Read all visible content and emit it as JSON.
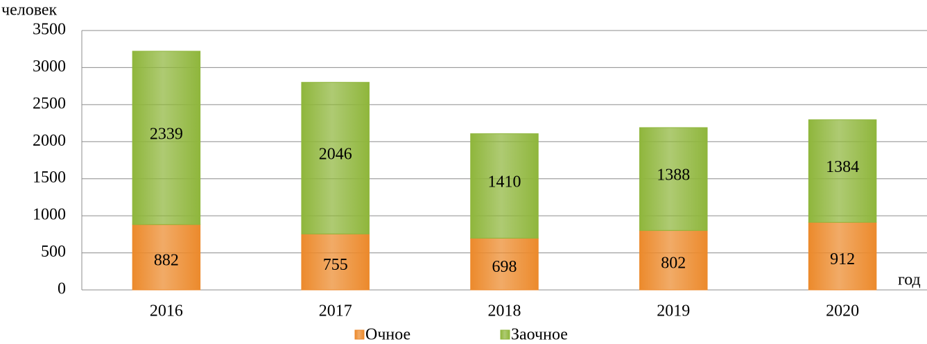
{
  "chart_data": {
    "type": "stacked-bar",
    "y_label": "человек",
    "x_label": "год",
    "categories": [
      "2016",
      "2017",
      "2018",
      "2019",
      "2020"
    ],
    "series": [
      {
        "name": "Очное",
        "color": "#ec8a2c",
        "values": [
          882,
          755,
          698,
          802,
          912
        ]
      },
      {
        "name": "Заочное",
        "color": "#8fb63c",
        "values": [
          2339,
          2046,
          1410,
          1388,
          1384
        ]
      }
    ],
    "ylim": [
      0,
      3500
    ],
    "yticks": [
      0,
      500,
      1000,
      1500,
      2000,
      2500,
      3000,
      3500
    ],
    "grid": true,
    "legend": "bottom"
  }
}
